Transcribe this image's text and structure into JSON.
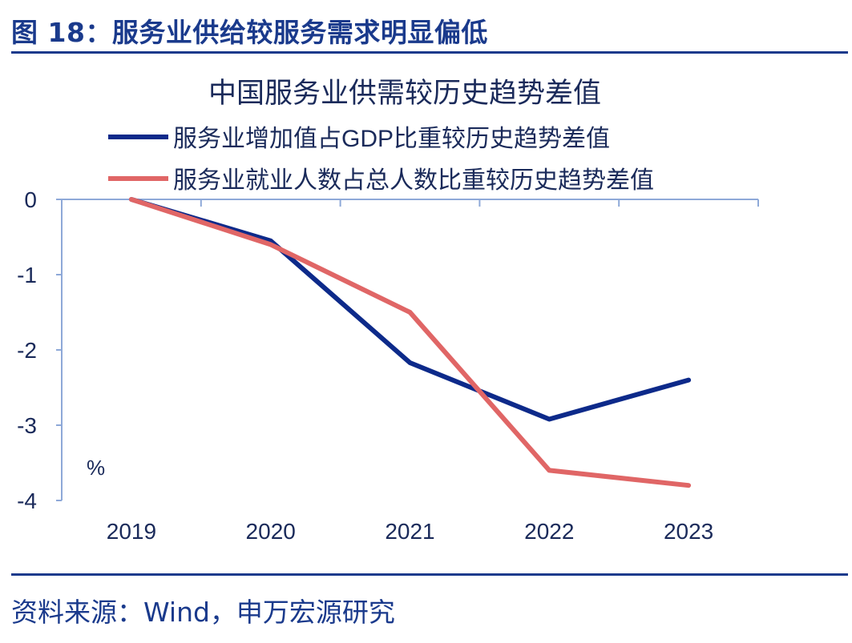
{
  "figure": {
    "title": "图 18：服务业供给较服务需求明显偏低",
    "source": "资料来源：Wind，申万宏源研究"
  },
  "colors": {
    "brand": "#1a3a8c",
    "series_gdp": "#0d2a8a",
    "series_emp": "#e06666",
    "axis": "#8ea9d8",
    "text": "#1a2a5a"
  },
  "chart_data": {
    "type": "line",
    "title": "中国服务业供需较历史趋势差值",
    "x": [
      "2019",
      "2020",
      "2021",
      "2022",
      "2023"
    ],
    "series": [
      {
        "name": "服务业增加值占GDP比重较历史趋势差值",
        "values": [
          0,
          -0.55,
          -2.17,
          -2.92,
          -2.4
        ]
      },
      {
        "name": "服务业就业人数占总人数比重较历史趋势差值",
        "values": [
          0,
          -0.6,
          -1.5,
          -3.6,
          -3.8
        ]
      }
    ],
    "ylim": [
      -4,
      0
    ],
    "yticks": [
      "0",
      "-1",
      "-2",
      "-3",
      "-4"
    ],
    "unit_label": "%",
    "legend": "top",
    "grid": false
  }
}
